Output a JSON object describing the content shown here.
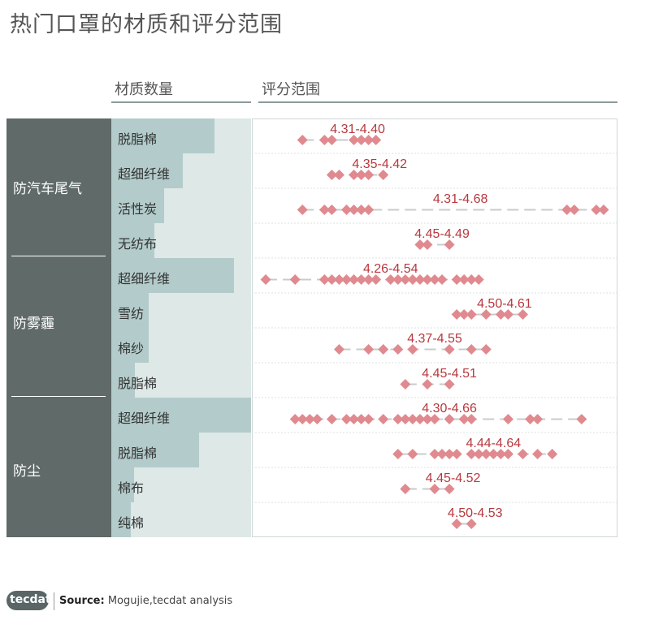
{
  "title": "热门口罩的材质和评分范围",
  "headers": {
    "count": "材质数量",
    "range": "评分范围"
  },
  "groups": [
    {
      "label": "防汽车尾气"
    },
    {
      "label": "防雾霾"
    },
    {
      "label": "防尘"
    }
  ],
  "footer": {
    "logo": "tecdat",
    "source_label": "Source:",
    "source_text": "Mogujie,tecdat analysis"
  },
  "colors": {
    "marker": "#e08a90",
    "range_text": "#b8383e",
    "panel": "#5f6a69",
    "bar_dark": "#b3cccb",
    "bar_light": "#dde8e7",
    "line": "#c8cccc"
  },
  "chart_data": {
    "type": "dot-range",
    "xlim": [
      4.22,
      4.7
    ],
    "rows": [
      {
        "group": "防汽车尾气",
        "material": "脱脂棉",
        "range": "4.31-4.40",
        "count_fraction": 0.74,
        "points": [
          4.28,
          4.31,
          4.32,
          4.35,
          4.36,
          4.37,
          4.38
        ]
      },
      {
        "group": "防汽车尾气",
        "material": "超细纤维",
        "range": "4.35-4.42",
        "count_fraction": 0.51,
        "points": [
          4.32,
          4.33,
          4.35,
          4.36,
          4.37,
          4.39
        ]
      },
      {
        "group": "防汽车尾气",
        "material": "活性炭",
        "range": "4.31-4.68",
        "count_fraction": 0.38,
        "points": [
          4.28,
          4.31,
          4.32,
          4.34,
          4.35,
          4.36,
          4.37,
          4.64,
          4.65,
          4.68,
          4.69
        ]
      },
      {
        "group": "防汽车尾气",
        "material": "无纺布",
        "range": "4.45-4.49",
        "count_fraction": 0.31,
        "points": [
          4.44,
          4.45,
          4.48
        ]
      },
      {
        "group": "防雾霾",
        "material": "超细纤维",
        "range": "4.26-4.54",
        "count_fraction": 0.88,
        "points": [
          4.23,
          4.27,
          4.31,
          4.32,
          4.33,
          4.34,
          4.35,
          4.36,
          4.37,
          4.38,
          4.4,
          4.41,
          4.42,
          4.43,
          4.44,
          4.45,
          4.46,
          4.47,
          4.49,
          4.5,
          4.51,
          4.52
        ]
      },
      {
        "group": "防雾霾",
        "material": "雪纺",
        "range": "4.50-4.61",
        "count_fraction": 0.27,
        "points": [
          4.49,
          4.5,
          4.51,
          4.53,
          4.55,
          4.56,
          4.58
        ]
      },
      {
        "group": "防雾霾",
        "material": "棉纱",
        "range": "4.37-4.55",
        "count_fraction": 0.27,
        "points": [
          4.33,
          4.37,
          4.39,
          4.41,
          4.43,
          4.48,
          4.51,
          4.53
        ]
      },
      {
        "group": "防雾霾",
        "material": "脱脂棉",
        "range": "4.45-4.51",
        "count_fraction": 0.17,
        "points": [
          4.42,
          4.45,
          4.48
        ]
      },
      {
        "group": "防尘",
        "material": "超细纤维",
        "range": "4.30-4.66",
        "count_fraction": 1.0,
        "points": [
          4.27,
          4.28,
          4.29,
          4.3,
          4.32,
          4.34,
          4.35,
          4.36,
          4.37,
          4.39,
          4.41,
          4.42,
          4.43,
          4.44,
          4.45,
          4.46,
          4.48,
          4.5,
          4.51,
          4.56,
          4.59,
          4.6,
          4.66
        ]
      },
      {
        "group": "防尘",
        "material": "脱脂棉",
        "range": "4.44-4.64",
        "count_fraction": 0.63,
        "points": [
          4.41,
          4.43,
          4.46,
          4.47,
          4.48,
          4.49,
          4.51,
          4.52,
          4.53,
          4.54,
          4.55,
          4.56,
          4.58,
          4.6,
          4.62
        ]
      },
      {
        "group": "防尘",
        "material": "棉布",
        "range": "4.45-4.52",
        "count_fraction": 0.16,
        "points": [
          4.42,
          4.46,
          4.48
        ]
      },
      {
        "group": "防尘",
        "material": "纯棉",
        "range": "4.50-4.53",
        "count_fraction": 0.14,
        "points": [
          4.49,
          4.51
        ]
      }
    ]
  }
}
